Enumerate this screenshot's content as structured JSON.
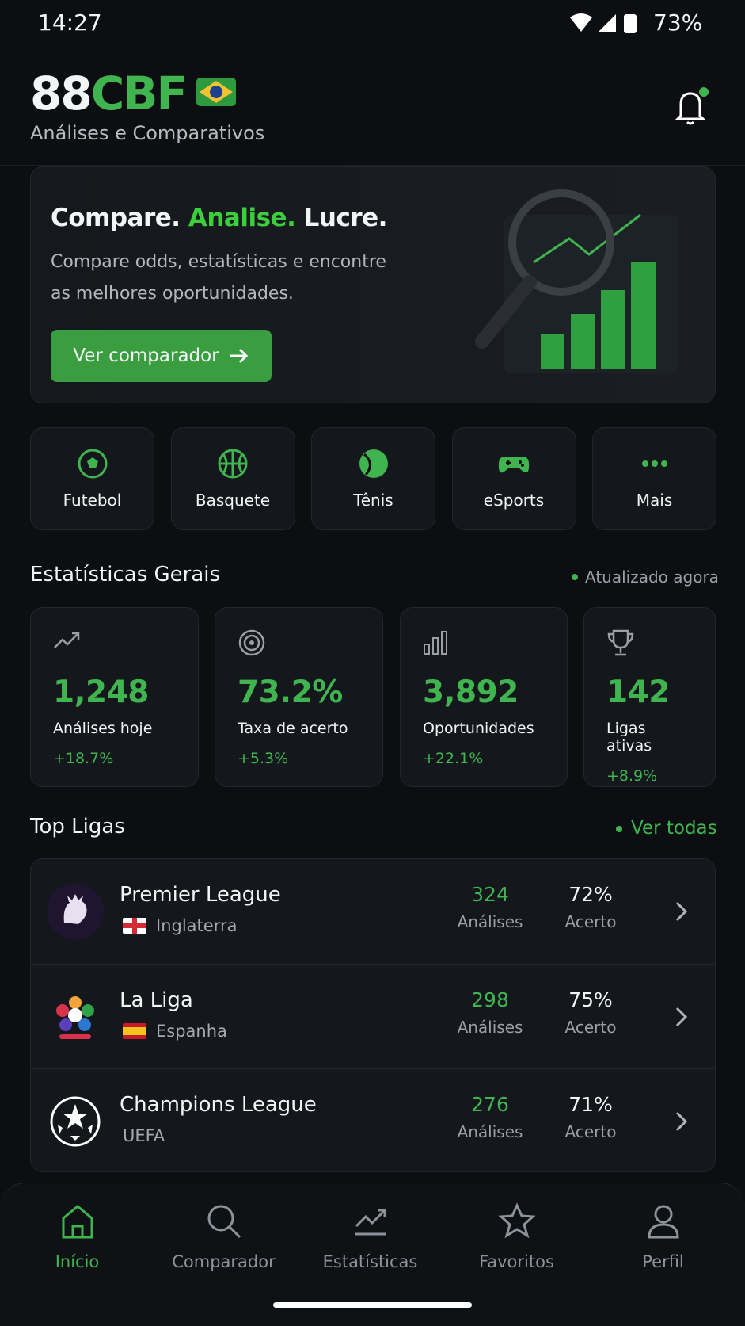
{
  "status_bar": {
    "time": "14:27",
    "battery": "73%"
  },
  "header": {
    "brand_prefix": "88",
    "brand_suffix": "CBF",
    "subtitle": "Análises e Comparativos"
  },
  "hero": {
    "title_parts": [
      "Compare.",
      "Analise.",
      "Lucre."
    ],
    "text": "Compare odds, estatísticas e encontre as melhores oportunidades.",
    "button": "Ver comparador"
  },
  "sports": [
    "Futebol",
    "Basquete",
    "Tênis",
    "eSports",
    "Mais"
  ],
  "stats": {
    "title": "Estatísticas Gerais",
    "updated": "Atualizado agora",
    "cards": [
      {
        "value": "1,248",
        "label": "Análises hoje",
        "change": "+18.7%"
      },
      {
        "value": "73.2%",
        "label": "Taxa de acerto",
        "change": "+5.3%"
      },
      {
        "value": "3,892",
        "label": "Oportunidades",
        "change": "+22.1%"
      },
      {
        "value": "142",
        "label": "Ligas ativas",
        "change": "+8.9%"
      }
    ]
  },
  "leagues": {
    "title": "Top Ligas",
    "see_all": "Ver todas",
    "rows": [
      {
        "name": "Premier League",
        "country": "Inglaterra",
        "analyses": "324",
        "analyses_label": "Análises",
        "accuracy": "72%",
        "accuracy_label": "Acerto"
      },
      {
        "name": "La Liga",
        "country": "Espanha",
        "analyses": "298",
        "analyses_label": "Análises",
        "accuracy": "75%",
        "accuracy_label": "Acerto"
      },
      {
        "name": "Champions League",
        "country": "UEFA",
        "analyses": "276",
        "analyses_label": "Análises",
        "accuracy": "71%",
        "accuracy_label": "Acerto"
      }
    ]
  },
  "nav": [
    "Início",
    "Comparador",
    "Estatísticas",
    "Favoritos",
    "Perfil"
  ]
}
